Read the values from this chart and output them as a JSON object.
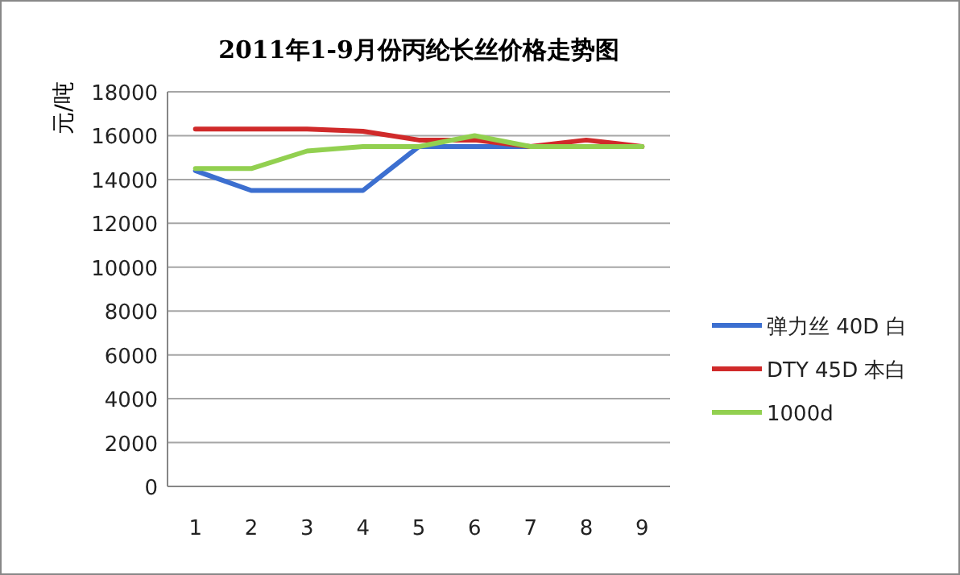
{
  "chart_data": {
    "type": "line",
    "title": "2011年1-9月份丙纶长丝价格走势图",
    "ylabel": "元/吨",
    "categories": [
      "1",
      "2",
      "3",
      "4",
      "5",
      "6",
      "7",
      "8",
      "9"
    ],
    "ylim": [
      0,
      18000
    ],
    "yticks": [
      0,
      2000,
      4000,
      6000,
      8000,
      10000,
      12000,
      14000,
      16000,
      18000
    ],
    "grid": "y",
    "legend": "right",
    "series": [
      {
        "name": "弹力丝 40D 白",
        "color": "#3c6fd0",
        "values": [
          14400,
          13500,
          13500,
          13500,
          15500,
          15500,
          15500,
          null,
          null
        ]
      },
      {
        "name": "DTY  45D 本白",
        "color": "#d02a2a",
        "values": [
          16300,
          16300,
          16300,
          16200,
          15800,
          15800,
          15500,
          15800,
          15500
        ]
      },
      {
        "name": "1000d",
        "color": "#92d050",
        "values": [
          14500,
          14500,
          15300,
          15500,
          15500,
          16000,
          15500,
          15500,
          15500
        ]
      }
    ]
  }
}
